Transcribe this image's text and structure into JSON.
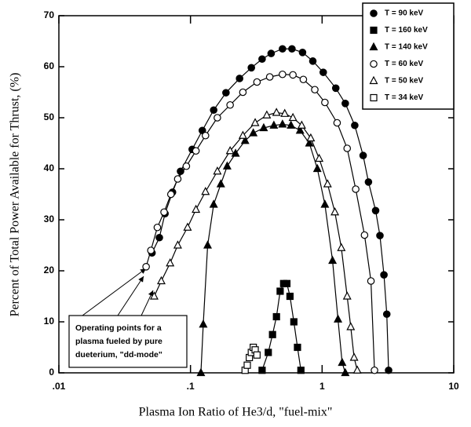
{
  "chart_data": {
    "type": "scatter",
    "xlabel": "Plasma Ion Ratio of He3/d,  \"fuel-mix\"",
    "ylabel": "Percent of Total Power Available for Thrust, (%)",
    "xscale": "log",
    "xlim": [
      0.01,
      10
    ],
    "ylim": [
      0,
      70
    ],
    "xticks": [
      {
        "value": 0.01,
        "label": ".01"
      },
      {
        "value": 0.1,
        "label": ".1"
      },
      1,
      10
    ],
    "yticks": [
      0,
      10,
      20,
      30,
      40,
      50,
      60,
      70
    ],
    "legend": "upper right",
    "annotation": [
      "Operating points for a",
      "plasma fueled by pure",
      "dueterium, \"dd-mode\""
    ],
    "series": [
      {
        "name": "T = 90 keV",
        "color": "#000000",
        "marker": "circle",
        "filled": true,
        "line": true,
        "x": [
          0.051,
          0.058,
          0.064,
          0.073,
          0.084,
          0.103,
          0.123,
          0.15,
          0.186,
          0.236,
          0.29,
          0.35,
          0.41,
          0.5,
          0.59,
          0.71,
          0.85,
          1.02,
          1.27,
          1.5,
          1.77,
          2.05,
          2.25,
          2.55,
          2.75,
          2.95,
          3.1,
          3.2
        ],
        "values": [
          23.5,
          26.5,
          31.2,
          35.4,
          39.5,
          43.8,
          47.5,
          51.5,
          54.9,
          57.7,
          59.8,
          61.5,
          62.6,
          63.5,
          63.5,
          62.8,
          61.1,
          58.9,
          55.8,
          52.8,
          48.5,
          42.6,
          37.4,
          31.8,
          26.9,
          19.2,
          11.5,
          0.5
        ]
      },
      {
        "name": "T = 160 keV",
        "color": "#000000",
        "marker": "square",
        "filled": true,
        "line": true,
        "x": [
          0.35,
          0.39,
          0.42,
          0.45,
          0.48,
          0.51,
          0.54,
          0.57,
          0.61,
          0.65,
          0.69
        ],
        "values": [
          0.5,
          4,
          7.5,
          11,
          16,
          17.5,
          17.5,
          15,
          10,
          5,
          0.5
        ]
      },
      {
        "name": "T = 140 keV",
        "color": "#000000",
        "marker": "triangle",
        "filled": true,
        "line": true,
        "x": [
          0.12,
          0.125,
          0.135,
          0.15,
          0.17,
          0.19,
          0.22,
          0.26,
          0.3,
          0.36,
          0.43,
          0.5,
          0.58,
          0.68,
          0.8,
          0.92,
          1.05,
          1.2,
          1.32,
          1.42,
          1.5
        ],
        "values": [
          0,
          9.5,
          25,
          33,
          37,
          40.5,
          43,
          45.5,
          47,
          48,
          48.5,
          48.7,
          48.5,
          47.5,
          45,
          40,
          33,
          22,
          10.5,
          2,
          0
        ]
      },
      {
        "name": "T = 60 keV",
        "color": "#000000",
        "marker": "circle",
        "filled": false,
        "line": true,
        "x": [
          0.046,
          0.05,
          0.056,
          0.063,
          0.071,
          0.08,
          0.093,
          0.11,
          0.13,
          0.16,
          0.2,
          0.25,
          0.32,
          0.4,
          0.5,
          0.6,
          0.72,
          0.88,
          1.05,
          1.3,
          1.55,
          1.8,
          2.1,
          2.35,
          2.5
        ],
        "values": [
          20.8,
          24,
          28.5,
          31.5,
          35,
          38,
          40.5,
          43.5,
          46.5,
          50,
          52.5,
          55,
          57,
          58,
          58.5,
          58.4,
          57.5,
          55.5,
          53,
          49,
          44,
          36,
          27,
          18,
          0.5
        ]
      },
      {
        "name": "T = 50 keV",
        "color": "#000000",
        "marker": "triangle",
        "filled": false,
        "line": true,
        "x": [
          0.053,
          0.06,
          0.07,
          0.08,
          0.095,
          0.11,
          0.13,
          0.16,
          0.2,
          0.25,
          0.31,
          0.38,
          0.45,
          0.52,
          0.6,
          0.7,
          0.82,
          0.95,
          1.1,
          1.25,
          1.4,
          1.55,
          1.65,
          1.75,
          1.85
        ],
        "values": [
          15,
          18,
          21.5,
          25,
          28.5,
          32,
          35.5,
          39.5,
          43.5,
          46.5,
          49,
          50.5,
          51,
          50.8,
          50,
          48.5,
          46,
          42,
          37,
          31.5,
          24.5,
          15,
          9,
          3,
          0.5
        ]
      },
      {
        "name": "T = 34 keV",
        "color": "#000000",
        "marker": "square",
        "filled": false,
        "line": false,
        "x": [
          0.26,
          0.27,
          0.28,
          0.29,
          0.3,
          0.31,
          0.32
        ],
        "values": [
          0.5,
          1.5,
          3,
          4,
          5,
          4.5,
          3.5
        ]
      }
    ]
  }
}
